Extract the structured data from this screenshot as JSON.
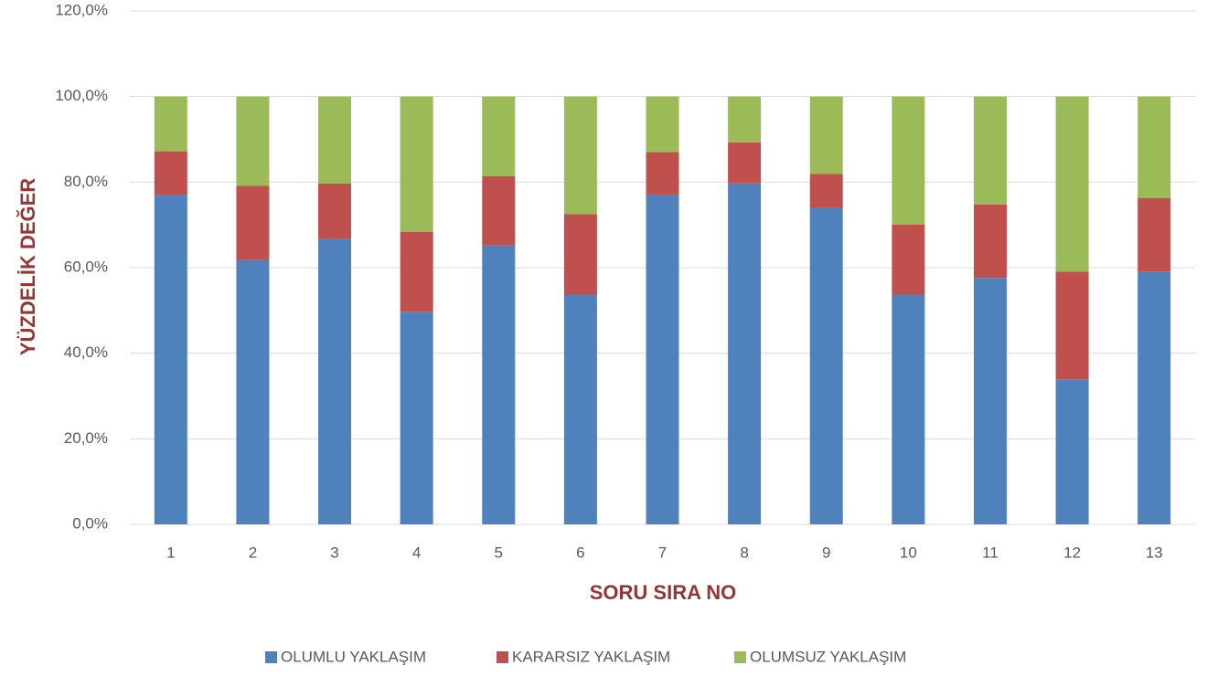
{
  "chart_data": {
    "type": "stacked_bar",
    "x_label": "SORU SIRA NO",
    "y_label": "YÜZDELİK DEĞER",
    "categories": [
      "1",
      "2",
      "3",
      "4",
      "5",
      "6",
      "7",
      "8",
      "9",
      "10",
      "11",
      "12",
      "13"
    ],
    "series": [
      {
        "name": "OLUMLU YAKLAŞIM",
        "color": "#4f81bd",
        "values": [
          76.9,
          61.8,
          66.7,
          49.7,
          65.2,
          53.7,
          77.0,
          79.7,
          74.0,
          53.7,
          57.6,
          33.9,
          59.1
        ]
      },
      {
        "name": "KARARSIZ YAKLAŞIM",
        "color": "#c0504d",
        "values": [
          10.3,
          17.3,
          13.0,
          18.7,
          16.2,
          18.8,
          10.0,
          9.6,
          7.9,
          16.4,
          17.2,
          25.2,
          17.2
        ]
      },
      {
        "name": "OLUMSUZ YAKLAŞIM",
        "color": "#9bbb59",
        "values": [
          12.8,
          20.9,
          20.3,
          31.6,
          18.6,
          27.5,
          13.0,
          10.7,
          18.1,
          29.9,
          25.2,
          40.9,
          23.7
        ]
      }
    ],
    "ylim": [
      0,
      120
    ],
    "yticks": [
      {
        "value": 0,
        "label": "0,0%"
      },
      {
        "value": 20,
        "label": "20,0%"
      },
      {
        "value": 40,
        "label": "40,0%"
      },
      {
        "value": 60,
        "label": "60,0%"
      },
      {
        "value": 80,
        "label": "80,0%"
      },
      {
        "value": 100,
        "label": "100,0%"
      },
      {
        "value": 120,
        "label": "120,0%"
      }
    ],
    "grid": true,
    "legend": "bottom"
  }
}
